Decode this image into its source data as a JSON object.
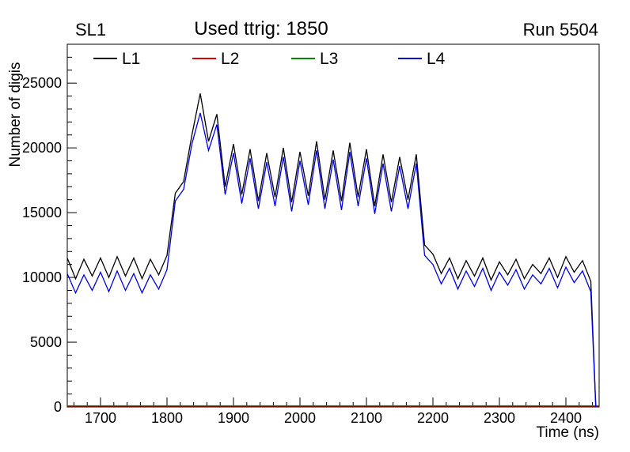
{
  "header": {
    "left": "SL1",
    "center": "Used ttrig: 1850",
    "right": "Run 5504"
  },
  "chart_data": {
    "type": "line",
    "title": "Used ttrig: 1850",
    "subtitle_left": "SL1",
    "subtitle_right": "Run 5504",
    "xlabel": "Time (ns)",
    "ylabel": "Number of digis",
    "xlim": [
      1650,
      2450
    ],
    "ylim": [
      0,
      28000
    ],
    "x_ticks": [
      1700,
      1800,
      1900,
      2000,
      2100,
      2200,
      2300,
      2400
    ],
    "y_ticks": [
      0,
      5000,
      10000,
      15000,
      20000,
      25000
    ],
    "x_minor_step": 20,
    "y_minor_step": 1000,
    "grid": false,
    "legend_position": "top-inside",
    "x": [
      1650,
      1662.5,
      1675,
      1687.5,
      1700,
      1712.5,
      1725,
      1737.5,
      1750,
      1762.5,
      1775,
      1787.5,
      1800,
      1812.5,
      1825,
      1837.5,
      1850,
      1862.5,
      1875,
      1887.5,
      1900,
      1912.5,
      1925,
      1937.5,
      1950,
      1962.5,
      1975,
      1987.5,
      2000,
      2012.5,
      2025,
      2037.5,
      2050,
      2062.5,
      2075,
      2087.5,
      2100,
      2112.5,
      2125,
      2137.5,
      2150,
      2162.5,
      2175,
      2187.5,
      2200,
      2212.5,
      2225,
      2237.5,
      2250,
      2262.5,
      2275,
      2287.5,
      2300,
      2312.5,
      2325,
      2337.5,
      2350,
      2362.5,
      2375,
      2387.5,
      2400,
      2412.5,
      2425,
      2437.5,
      2445
    ],
    "series": [
      {
        "name": "L1",
        "color": "#000000",
        "values": [
          11500,
          9900,
          11400,
          10100,
          11500,
          10000,
          11600,
          10100,
          11500,
          9900,
          11400,
          10200,
          11700,
          16500,
          17400,
          21000,
          24200,
          20500,
          22600,
          17000,
          20300,
          16400,
          19900,
          15900,
          19600,
          16200,
          20000,
          15800,
          19700,
          16300,
          20500,
          16000,
          19800,
          15900,
          20400,
          16200,
          19900,
          15500,
          19500,
          15800,
          19300,
          16000,
          19500,
          12500,
          11800,
          10300,
          11500,
          9900,
          11300,
          10100,
          11500,
          9800,
          11200,
          10200,
          11400,
          9900,
          11000,
          10300,
          11500,
          10000,
          11600,
          10400,
          11300,
          9700,
          0
        ]
      },
      {
        "name": "L2",
        "color": "#dd0000",
        "flat_value": 60
      },
      {
        "name": "L3",
        "color": "#008800",
        "flat_value": 90
      },
      {
        "name": "L4",
        "color": "#0000dd",
        "values": [
          10300,
          8800,
          10200,
          9000,
          10400,
          8900,
          10500,
          9000,
          10300,
          8800,
          10200,
          9100,
          10600,
          15900,
          16800,
          20300,
          22700,
          19800,
          21800,
          16400,
          19600,
          15700,
          19200,
          15300,
          18900,
          15500,
          19300,
          15100,
          19000,
          15600,
          19800,
          15300,
          19100,
          15200,
          19700,
          15500,
          19200,
          14900,
          18800,
          15100,
          18600,
          15300,
          18800,
          11700,
          11000,
          9500,
          10700,
          9100,
          10500,
          9300,
          10700,
          9000,
          10400,
          9400,
          10600,
          9100,
          10200,
          9500,
          10700,
          9200,
          10800,
          9600,
          10500,
          8900,
          0
        ]
      }
    ]
  }
}
